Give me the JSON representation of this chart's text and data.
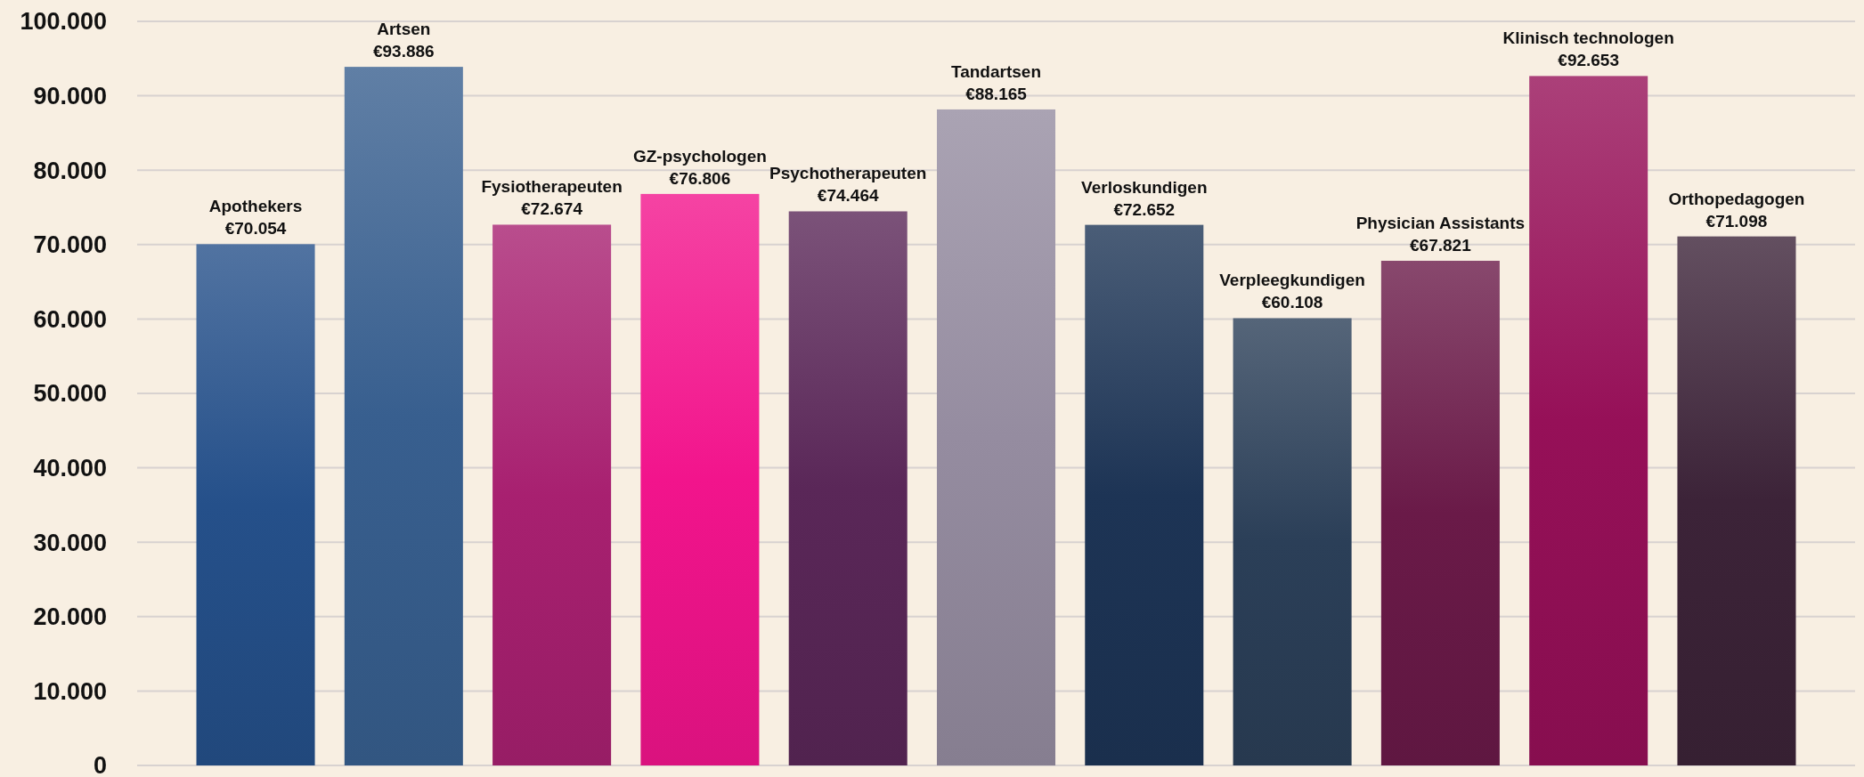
{
  "chart_data": {
    "type": "bar",
    "categories": [
      "Apothekers",
      "Artsen",
      "Fysiotherapeuten",
      "GZ-psychologen",
      "Psychotherapeuten",
      "Tandartsen",
      "Verloskundigen",
      "Verpleegkundigen",
      "Physician Assistants",
      "Klinisch technologen",
      "Orthopedagogen"
    ],
    "values": [
      70054,
      93886,
      72674,
      76806,
      74464,
      88165,
      72652,
      60108,
      67821,
      92653,
      71098
    ],
    "value_labels": [
      "€70.054",
      "€93.886",
      "€72.674",
      "€76.806",
      "€74.464",
      "€88.165",
      "€72.652",
      "€60.108",
      "€67.821",
      "€92.653",
      "€71.098"
    ],
    "colors": [
      "#25508a",
      "#385f8f",
      "#a82070",
      "#f2148c",
      "#5a2758",
      "#958ca0",
      "#1d3455",
      "#2b3f58",
      "#6a1a48",
      "#961058",
      "#3c2338"
    ],
    "ylim": [
      0,
      100000
    ],
    "yticks": [
      0,
      {
        "value": 10000,
        "label": "10.000"
      },
      {
        "value": 20000,
        "label": "20.000"
      },
      {
        "value": 30000,
        "label": "30.000"
      },
      {
        "value": 40000,
        "label": "40.000"
      },
      {
        "value": 50000,
        "label": "50.000"
      },
      {
        "value": 60000,
        "label": "60.000"
      },
      {
        "value": 70000,
        "label": "70.000"
      },
      {
        "value": 80000,
        "label": "80.000"
      },
      {
        "value": 90000,
        "label": "90.000"
      },
      {
        "value": 100000,
        "label": "100.000"
      }
    ],
    "grid": "y",
    "tick_labels": "y"
  }
}
